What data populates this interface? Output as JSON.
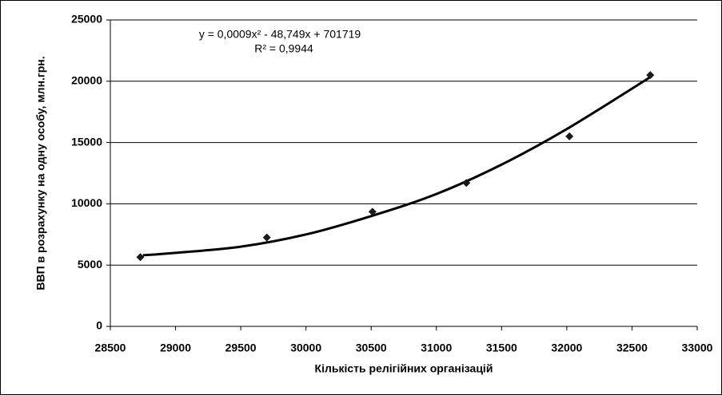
{
  "chart_data": {
    "type": "scatter",
    "xlabel": "Кількість релігійних організацій",
    "ylabel": "ВВП в розрахунку на одну особу, млн.грн.",
    "annotations": [
      "y = 0,0009x² - 48,749x + 701719",
      "R² = 0,9944"
    ],
    "x": [
      28730,
      29700,
      30510,
      31230,
      32020,
      32640
    ],
    "values": [
      5650,
      7250,
      9350,
      11700,
      15500,
      20500
    ],
    "color": "#1a1a1a",
    "trendline": {
      "x": [
        28750,
        29000,
        29500,
        30000,
        30500,
        31000,
        31500,
        32000,
        32650
      ],
      "values": [
        5800,
        6000,
        6500,
        7500,
        9000,
        10800,
        13200,
        16100,
        20400
      ],
      "color": "#000000"
    },
    "xlim": [
      28500,
      33000
    ],
    "xticks": [
      28500,
      29000,
      29500,
      30000,
      30500,
      31000,
      31500,
      32000,
      32500,
      33000
    ],
    "ylim": [
      0,
      25000
    ],
    "yticks": [
      0,
      5000,
      10000,
      15000,
      20000,
      25000
    ],
    "grid": true
  }
}
